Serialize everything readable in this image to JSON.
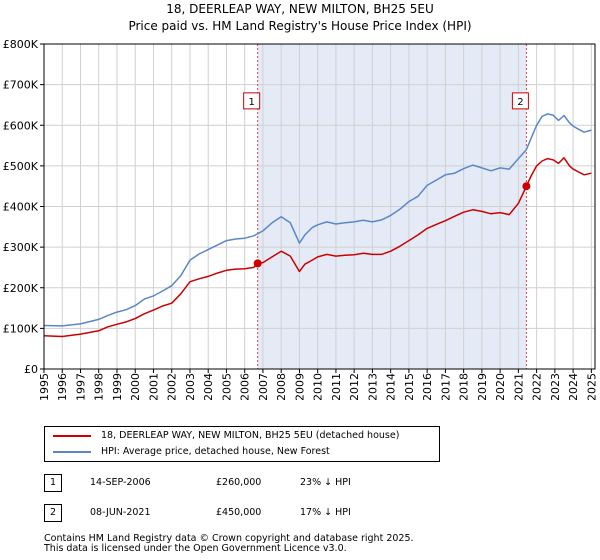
{
  "header": {
    "title": "18, DEERLEAP WAY, NEW MILTON, BH25 5EU",
    "subtitle": "Price paid vs. HM Land Registry's House Price Index (HPI)"
  },
  "chart_data": {
    "type": "line",
    "title": "18, DEERLEAP WAY, NEW MILTON, BH25 5EU",
    "subtitle": "Price paid vs. HM Land Registry's House Price Index (HPI)",
    "xlim": [
      1995,
      2025.2
    ],
    "ylim": [
      0,
      800000
    ],
    "x_ticks": [
      1995,
      1996,
      1997,
      1998,
      1999,
      2000,
      2001,
      2002,
      2003,
      2004,
      2005,
      2006,
      2007,
      2008,
      2009,
      2010,
      2011,
      2012,
      2013,
      2014,
      2015,
      2016,
      2017,
      2018,
      2019,
      2020,
      2021,
      2022,
      2023,
      2024,
      2025
    ],
    "x_tick_labels": [
      "1995",
      "1996",
      "1997",
      "1998",
      "1999",
      "2000",
      "2001",
      "2002",
      "2003",
      "2004",
      "2005",
      "2006",
      "2007",
      "2008",
      "2009",
      "2010",
      "2011",
      "2012",
      "2013",
      "2014",
      "2015",
      "2016",
      "2017",
      "2018",
      "2019",
      "2020",
      "2021",
      "2022",
      "2023",
      "2024",
      "2025"
    ],
    "y_ticks": [
      0,
      100000,
      200000,
      300000,
      400000,
      500000,
      600000,
      700000,
      800000
    ],
    "y_tick_labels": [
      "£0",
      "£100K",
      "£200K",
      "£300K",
      "£400K",
      "£500K",
      "£600K",
      "£700K",
      "£800K"
    ],
    "grid": true,
    "shaded_period": [
      2006.71,
      2021.44
    ],
    "series": [
      {
        "name": "18, DEERLEAP WAY, NEW MILTON, BH25 5EU (detached house)",
        "color": "#cc0000",
        "x": [
          1995,
          1996,
          1997,
          1998,
          1998.5,
          1999,
          1999.5,
          2000,
          2000.5,
          2001,
          2001.5,
          2002,
          2002.5,
          2003,
          2003.5,
          2004,
          2004.5,
          2005,
          2005.5,
          2006,
          2006.5,
          2006.71,
          2007,
          2007.5,
          2008,
          2008.5,
          2009,
          2009.3,
          2009.7,
          2010,
          2010.5,
          2011,
          2011.5,
          2012,
          2012.5,
          2013,
          2013.5,
          2014,
          2014.5,
          2015,
          2015.5,
          2016,
          2016.5,
          2017,
          2017.5,
          2018,
          2018.5,
          2019,
          2019.5,
          2020,
          2020.5,
          2021,
          2021.44,
          2021.7,
          2022,
          2022.3,
          2022.6,
          2022.9,
          2023.2,
          2023.5,
          2023.8,
          2024,
          2024.3,
          2024.6,
          2025
        ],
        "values": [
          82000,
          80000,
          86000,
          94000,
          104000,
          110000,
          116000,
          124000,
          136000,
          145000,
          155000,
          162000,
          185000,
          215000,
          222000,
          228000,
          236000,
          243000,
          246000,
          247000,
          250000,
          260000,
          262000,
          276000,
          290000,
          278000,
          240000,
          258000,
          268000,
          276000,
          282000,
          278000,
          280000,
          281000,
          285000,
          282000,
          282000,
          290000,
          302000,
          316000,
          330000,
          346000,
          356000,
          365000,
          376000,
          386000,
          392000,
          388000,
          382000,
          385000,
          380000,
          408000,
          450000,
          475000,
          500000,
          512000,
          518000,
          515000,
          506000,
          520000,
          500000,
          492000,
          485000,
          478000,
          482000
        ]
      },
      {
        "name": "HPI: Average price, detached house, New Forest",
        "color": "#5b87c8",
        "x": [
          1995,
          1996,
          1997,
          1998,
          1998.5,
          1999,
          1999.5,
          2000,
          2000.5,
          2001,
          2001.5,
          2002,
          2002.5,
          2003,
          2003.5,
          2004,
          2004.5,
          2005,
          2005.5,
          2006,
          2006.5,
          2007,
          2007.5,
          2008,
          2008.5,
          2009,
          2009.3,
          2009.7,
          2010,
          2010.5,
          2011,
          2011.5,
          2012,
          2012.5,
          2013,
          2013.5,
          2014,
          2014.5,
          2015,
          2015.5,
          2016,
          2016.5,
          2017,
          2017.5,
          2018,
          2018.5,
          2019,
          2019.5,
          2020,
          2020.5,
          2021,
          2021.44,
          2021.7,
          2022,
          2022.3,
          2022.6,
          2022.9,
          2023.2,
          2023.5,
          2023.8,
          2024,
          2024.3,
          2024.6,
          2025
        ],
        "values": [
          107000,
          106000,
          111000,
          122000,
          132000,
          140000,
          146000,
          156000,
          172000,
          180000,
          192000,
          205000,
          230000,
          268000,
          283000,
          294000,
          305000,
          316000,
          320000,
          322000,
          328000,
          340000,
          360000,
          375000,
          360000,
          310000,
          330000,
          348000,
          355000,
          362000,
          357000,
          360000,
          362000,
          366000,
          362000,
          367000,
          378000,
          393000,
          412000,
          425000,
          452000,
          465000,
          478000,
          482000,
          493000,
          502000,
          495000,
          488000,
          495000,
          492000,
          518000,
          540000,
          568000,
          600000,
          622000,
          628000,
          625000,
          612000,
          624000,
          606000,
          598000,
          590000,
          583000,
          588000
        ]
      }
    ],
    "annotations": [
      {
        "label": "1",
        "x": 2006.71,
        "y": 260000,
        "label_y": 660000
      },
      {
        "label": "2",
        "x": 2021.44,
        "y": 450000,
        "label_y": 660000
      }
    ],
    "legend_placement": "below"
  },
  "legend": {
    "items": [
      {
        "label": "18, DEERLEAP WAY, NEW MILTON, BH25 5EU (detached house)",
        "color": "#cc0000"
      },
      {
        "label": "HPI: Average price, detached house, New Forest",
        "color": "#5b87c8"
      }
    ]
  },
  "transactions": [
    {
      "num": "1",
      "date": "14-SEP-2006",
      "price": "£260,000",
      "hpi": "23% ↓ HPI"
    },
    {
      "num": "2",
      "date": "08-JUN-2021",
      "price": "£450,000",
      "hpi": "17% ↓ HPI"
    }
  ],
  "footer": {
    "line1": "Contains HM Land Registry data © Crown copyright and database right 2025.",
    "line2": "This data is licensed under the Open Government Licence v3.0."
  }
}
